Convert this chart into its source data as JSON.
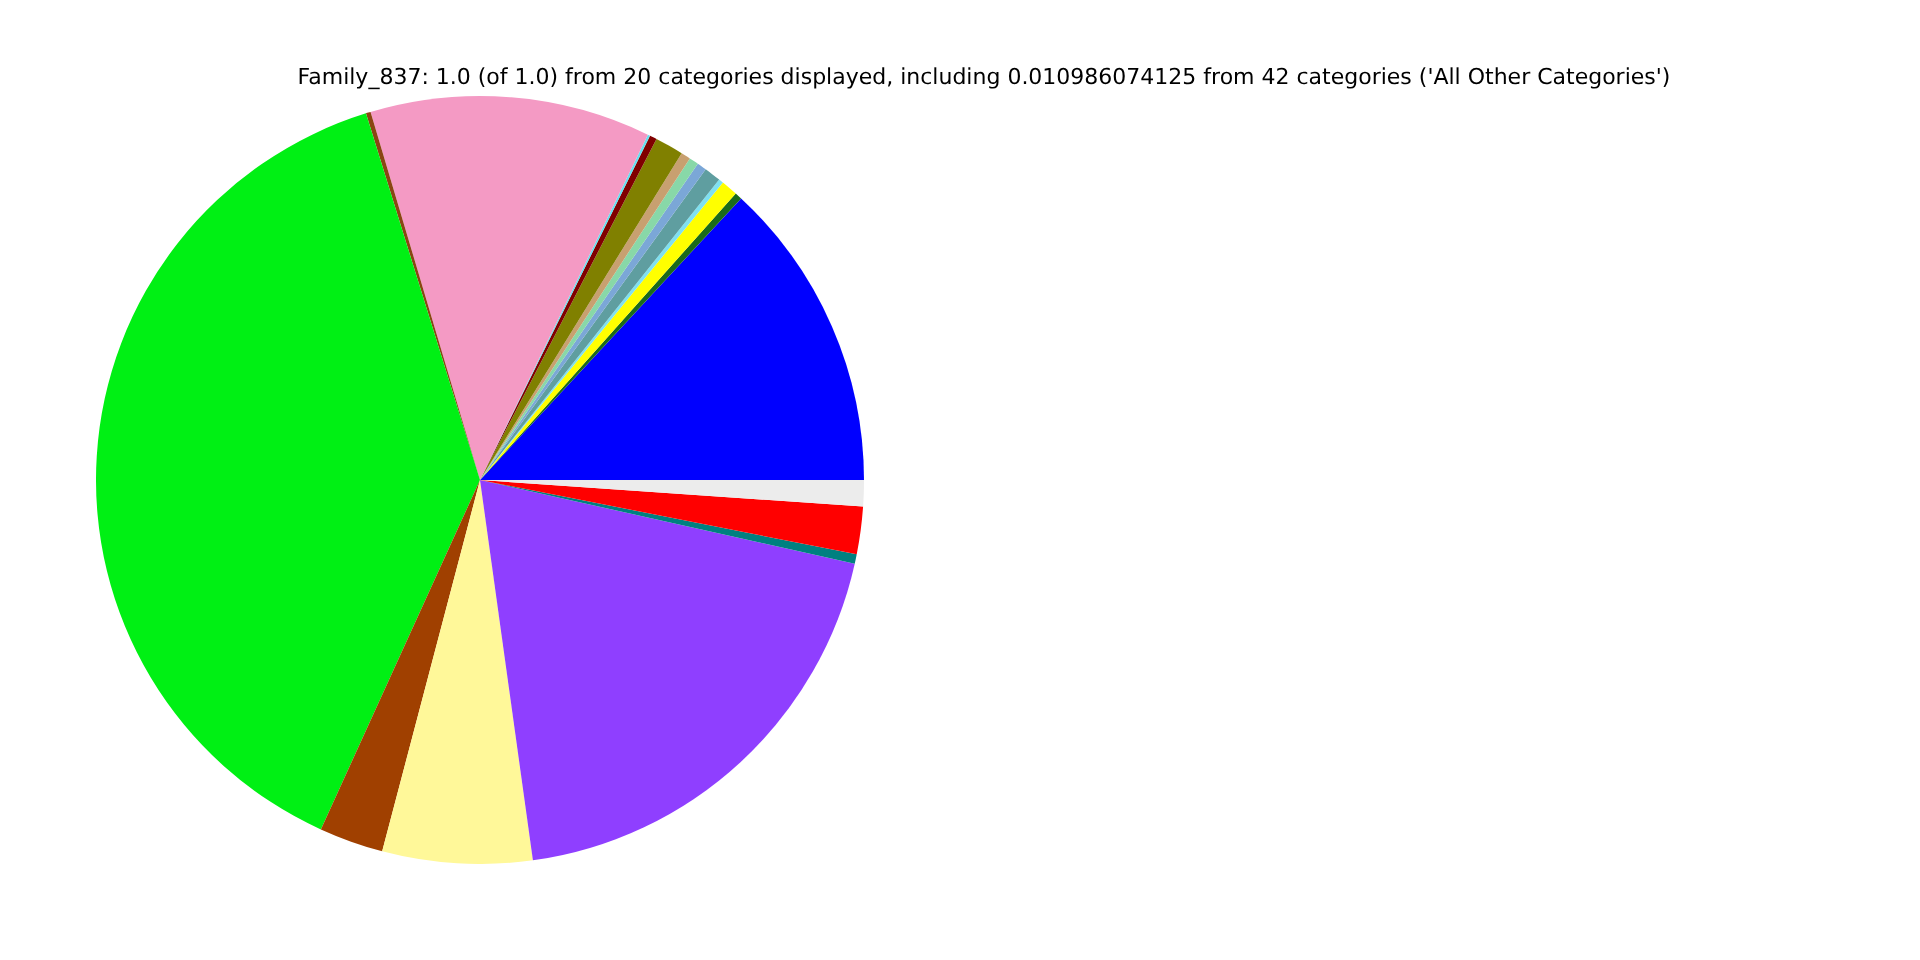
{
  "chart_data": {
    "type": "pie",
    "title": "Family_837: 1.0 (of 1.0) from 20 categories displayed, including 0.010986074125 from 42 categories ('All Other Categories')",
    "categories": [
      null,
      null,
      null,
      null,
      null,
      null,
      null,
      null,
      null,
      null,
      null,
      null,
      null,
      null,
      null,
      null,
      null,
      null,
      null,
      null
    ],
    "values": [
      13.1,
      0.3,
      0.7,
      0.2,
      0.7,
      0.4,
      0.4,
      0.4,
      1.2,
      0.3,
      0.1,
      11.8,
      0.2,
      38.4,
      2.7,
      6.3,
      19.3,
      0.4,
      2.0,
      1.1
    ],
    "colors": [
      "#0000ff",
      "#1a6b1a",
      "#ffff00",
      "#7fe0f0",
      "#5f9ea0",
      "#7ba7d7",
      "#88d8a8",
      "#c8a070",
      "#808000",
      "#800000",
      "#66e0f0",
      "#f49ac4",
      "#8b4513",
      "#00f014",
      "#a04000",
      "#fff899",
      "#8f3fff",
      "#008080",
      "#ff0000",
      "#ececec"
    ],
    "legend": false
  }
}
